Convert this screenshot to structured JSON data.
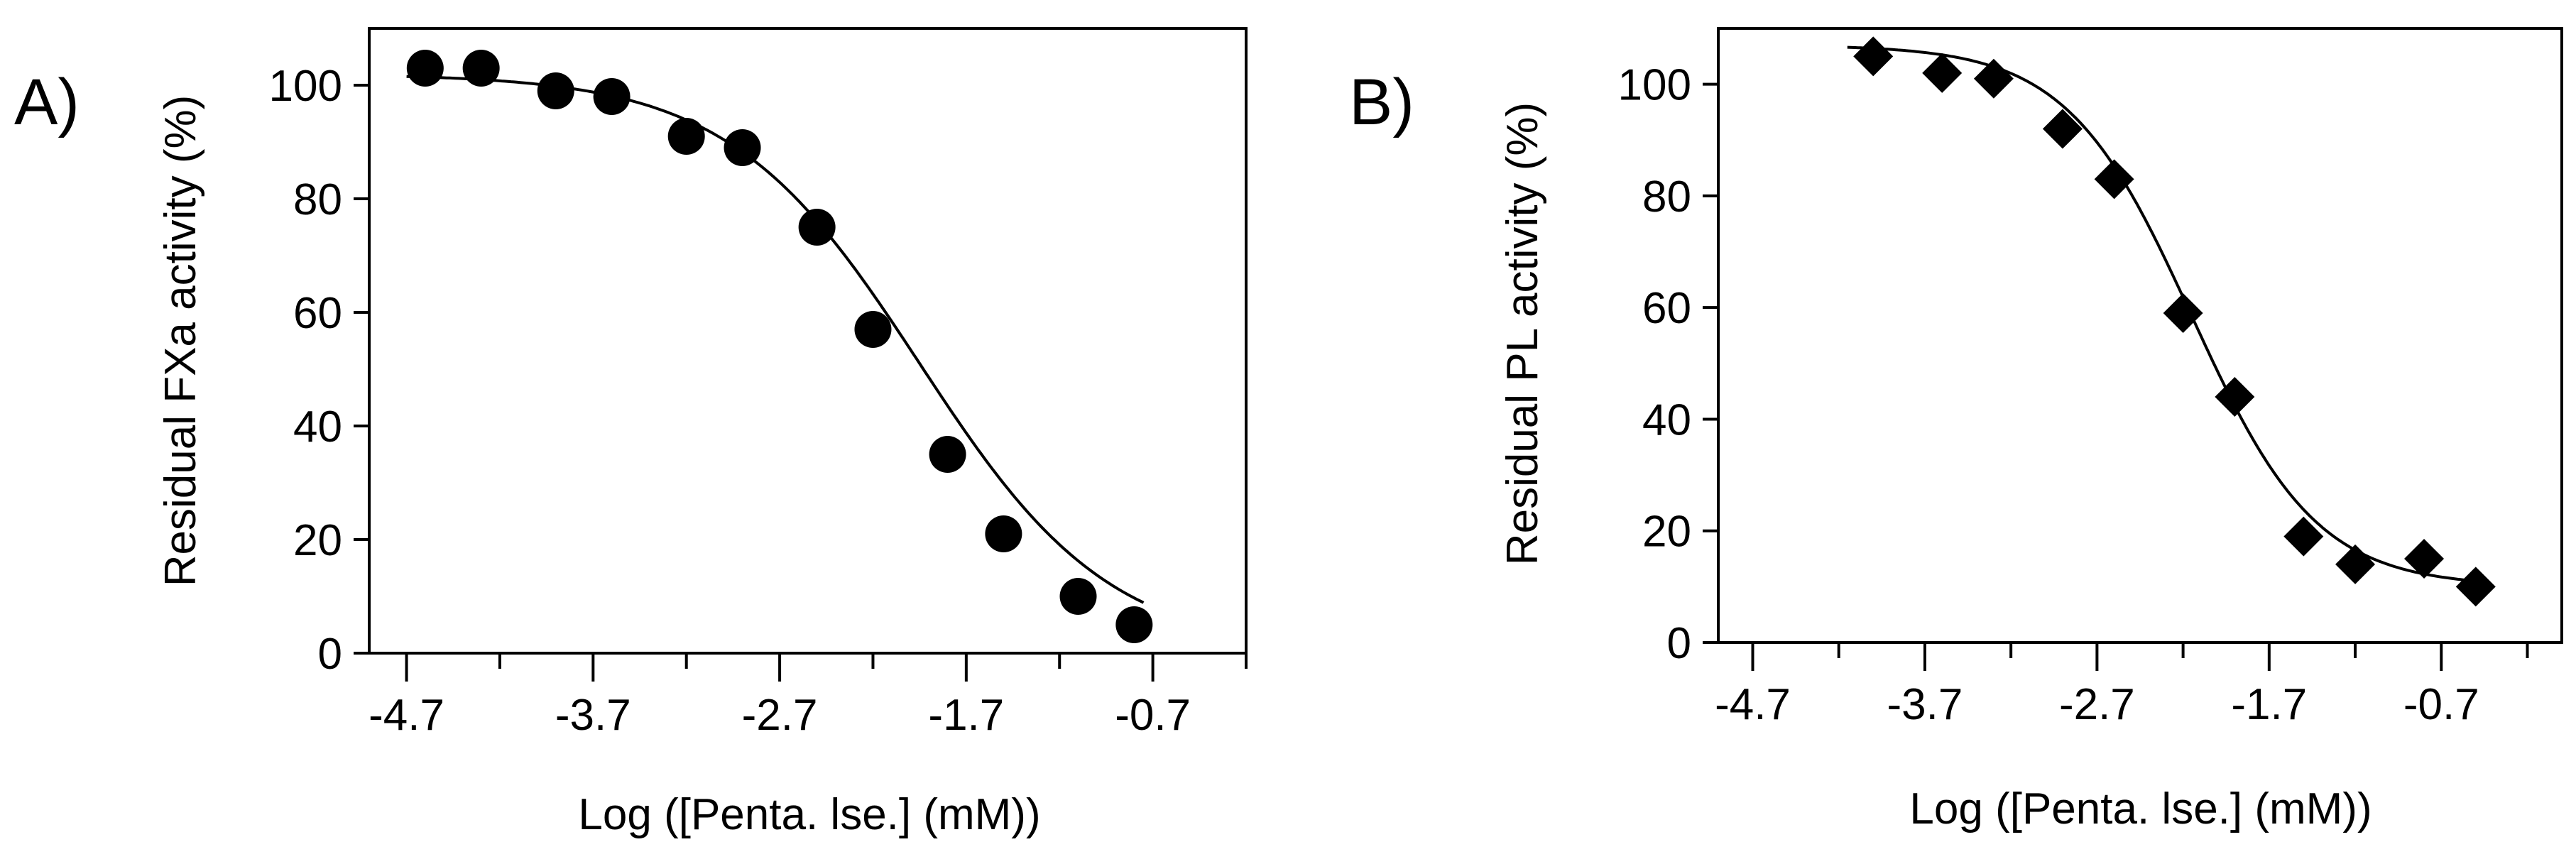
{
  "chart_data": [
    {
      "type": "scatter",
      "panel_label": "A)",
      "title": "",
      "xlabel": "Log ([Penta. lse.] (mM))",
      "ylabel": "Residual FXa activity (%)",
      "xlim": [
        -4.9,
        -0.2
      ],
      "ylim": [
        0,
        110
      ],
      "xticks": [
        -4.7,
        -3.7,
        -2.7,
        -1.7,
        -0.7
      ],
      "xtick_labels": [
        "-4.7",
        "-3.7",
        "-2.7",
        "-1.7",
        "-0.7"
      ],
      "yticks": [
        0,
        20,
        40,
        60,
        80,
        100
      ],
      "ytick_labels": [
        "0",
        "20",
        "40",
        "60",
        "80",
        "100"
      ],
      "marker": "circle",
      "grid": false,
      "x": [
        -4.6,
        -4.3,
        -3.9,
        -3.6,
        -3.2,
        -2.9,
        -2.5,
        -2.2,
        -1.8,
        -1.5,
        -1.1,
        -0.8
      ],
      "y": [
        103,
        103,
        99,
        98,
        91,
        89,
        75,
        57,
        35,
        21,
        10,
        5
      ],
      "fit": {
        "model": "sigmoid",
        "top": 102,
        "bottom": 0,
        "log_ic50": -1.95,
        "hill": 0.85,
        "x_range": [
          -4.7,
          -0.75
        ]
      }
    },
    {
      "type": "scatter",
      "panel_label": "B)",
      "title": "",
      "xlabel": "Log ([Penta. lse.] (mM))",
      "ylabel": "Residual PL activity (%)",
      "xlim": [
        -4.9,
        0.0
      ],
      "ylim": [
        0,
        110
      ],
      "xticks": [
        -4.7,
        -3.7,
        -2.7,
        -1.7,
        -0.7
      ],
      "xtick_labels": [
        "-4.7",
        "-3.7",
        "-2.7",
        "-1.7",
        "-0.7"
      ],
      "yticks": [
        0,
        20,
        40,
        60,
        80,
        100
      ],
      "ytick_labels": [
        "0",
        "20",
        "40",
        "60",
        "80",
        "100"
      ],
      "marker": "diamond",
      "grid": false,
      "x": [
        -4.0,
        -3.6,
        -3.3,
        -2.9,
        -2.6,
        -2.2,
        -1.9,
        -1.5,
        -1.2,
        -0.8,
        -0.5
      ],
      "y": [
        105,
        102,
        101,
        92,
        83,
        59,
        44,
        19,
        14,
        15,
        10
      ],
      "fit": {
        "model": "sigmoid",
        "top": 107,
        "bottom": 10,
        "log_ic50": -2.15,
        "hill": 1.2,
        "x_range": [
          -4.15,
          -0.45
        ]
      }
    }
  ]
}
